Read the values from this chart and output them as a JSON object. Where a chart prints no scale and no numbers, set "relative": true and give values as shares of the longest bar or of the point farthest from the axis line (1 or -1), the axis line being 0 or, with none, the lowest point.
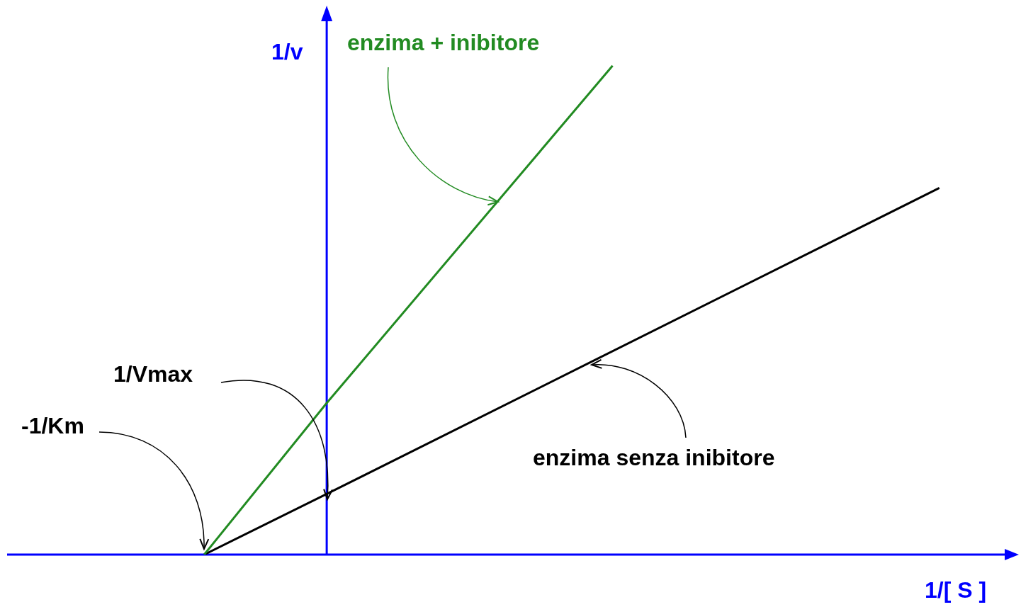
{
  "chart_data": {
    "type": "line",
    "relative": true,
    "xlabel": "1/[ S ]",
    "ylabel": "1/v",
    "categories": [
      null,
      null,
      null,
      null,
      null,
      null,
      null,
      null,
      null,
      null,
      null,
      null,
      null,
      null,
      null,
      null,
      null,
      null,
      null,
      null,
      null,
      null,
      null,
      null,
      null,
      null
    ],
    "series": [
      {
        "name": "enzima + inibitore",
        "color": "#228b22",
        "values": [
          null,
          null,
          null,
          null,
          null,
          0,
          null,
          null,
          0.31,
          null,
          null,
          null,
          null,
          null,
          null,
          1,
          null,
          null,
          null,
          null,
          null,
          null,
          null,
          null,
          null,
          null
        ]
      },
      {
        "name": "enzima senza inibitore",
        "color": "#000000",
        "values": [
          null,
          null,
          null,
          null,
          null,
          0,
          null,
          null,
          0.124,
          null,
          null,
          null,
          null,
          null,
          null,
          null,
          null,
          null,
          null,
          null,
          null,
          null,
          null,
          0.75,
          null,
          null
        ]
      }
    ],
    "annotations": [
      "1/Vmax",
      "-1/Km"
    ],
    "legend": false,
    "marker": "none"
  }
}
